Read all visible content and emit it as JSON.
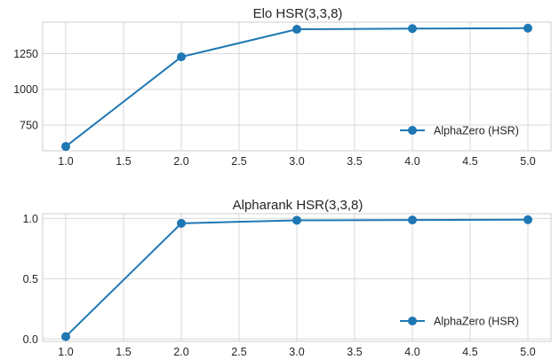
{
  "chart_data": [
    {
      "type": "line",
      "title": "Elo HSR(3,3,8)",
      "xlabel": "",
      "ylabel": "",
      "x": [
        1.0,
        2.0,
        3.0,
        4.0,
        5.0
      ],
      "series": [
        {
          "name": "AlphaZero (HSR)",
          "values": [
            600,
            1227,
            1420,
            1425,
            1428
          ],
          "color": "#1f77b4"
        }
      ],
      "xlim": [
        0.8,
        5.2
      ],
      "ylim": [
        570,
        1470
      ],
      "xticks": [
        1.0,
        1.5,
        2.0,
        2.5,
        3.0,
        3.5,
        4.0,
        4.5,
        5.0
      ],
      "xtick_labels": [
        "1.0",
        "1.5",
        "2.0",
        "2.5",
        "3.0",
        "3.5",
        "4.0",
        "4.5",
        "5.0"
      ],
      "yticks": [
        750,
        1000,
        1250
      ],
      "ytick_labels": [
        "750",
        "1000",
        "1250"
      ],
      "grid": true,
      "legend": "lower-right"
    },
    {
      "type": "line",
      "title": "Alpharank HSR(3,3,8)",
      "xlabel": "",
      "ylabel": "",
      "x": [
        1.0,
        2.0,
        3.0,
        4.0,
        5.0
      ],
      "series": [
        {
          "name": "AlphaZero (HSR)",
          "values": [
            0.02,
            0.96,
            0.985,
            0.988,
            0.99
          ],
          "color": "#1f77b4"
        }
      ],
      "xlim": [
        0.8,
        5.2
      ],
      "ylim": [
        -0.02,
        1.04
      ],
      "xticks": [
        1.0,
        1.5,
        2.0,
        2.5,
        3.0,
        3.5,
        4.0,
        4.5,
        5.0
      ],
      "xtick_labels": [
        "1.0",
        "1.5",
        "2.0",
        "2.5",
        "3.0",
        "3.5",
        "4.0",
        "4.5",
        "5.0"
      ],
      "yticks": [
        0.0,
        0.5,
        1.0
      ],
      "ytick_labels": [
        "0.0",
        "0.5",
        "1.0"
      ],
      "grid": true,
      "legend": "lower-right"
    }
  ]
}
